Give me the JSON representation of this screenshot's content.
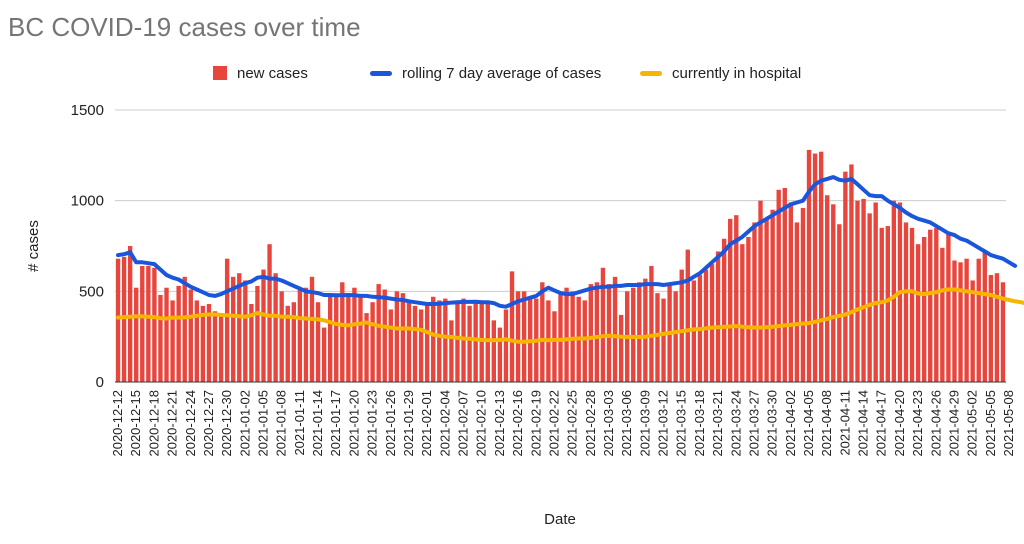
{
  "chart_data": {
    "type": "bar+line",
    "title": "BC COVID-19 cases over time",
    "xlabel": "Date",
    "ylabel": "# cases",
    "ylim": [
      0,
      1500
    ],
    "yticks": [
      0,
      500,
      1000,
      1500
    ],
    "grid": true,
    "legend_position": "top",
    "x_tick_labels": [
      "2020-12-12",
      "2020-12-15",
      "2020-12-18",
      "2020-12-21",
      "2020-12-24",
      "2020-12-27",
      "2020-12-30",
      "2021-01-02",
      "2021-01-05",
      "2021-01-08",
      "2021-01-11",
      "2021-01-14",
      "2021-01-17",
      "2021-01-20",
      "2021-01-23",
      "2021-01-26",
      "2021-01-29",
      "2021-02-01",
      "2021-02-04",
      "2021-02-07",
      "2021-02-10",
      "2021-02-13",
      "2021-02-16",
      "2021-02-19",
      "2021-02-22",
      "2021-02-25",
      "2021-02-28",
      "2021-03-03",
      "2021-03-06",
      "2021-03-09",
      "2021-03-12",
      "2021-03-15",
      "2021-03-18",
      "2021-03-21",
      "2021-03-24",
      "2021-03-27",
      "2021-03-30",
      "2021-04-02",
      "2021-04-05",
      "2021-04-08",
      "2021-04-11",
      "2021-04-14",
      "2021-04-17",
      "2021-04-20",
      "2021-04-23",
      "2021-04-26",
      "2021-04-29",
      "2021-05-02",
      "2021-05-05",
      "2021-05-08"
    ],
    "series": [
      {
        "name": "new cases",
        "kind": "bar",
        "color": "#e8453c",
        "values": [
          680,
          690,
          750,
          520,
          640,
          640,
          630,
          480,
          520,
          450,
          530,
          580,
          510,
          450,
          420,
          430,
          390,
          380,
          680,
          580,
          600,
          560,
          430,
          530,
          620,
          760,
          600,
          500,
          420,
          440,
          510,
          520,
          580,
          440,
          300,
          470,
          480,
          550,
          490,
          520,
          480,
          380,
          440,
          540,
          510,
          400,
          500,
          490,
          450,
          420,
          400,
          430,
          470,
          450,
          460,
          340,
          450,
          460,
          420,
          440,
          450,
          430,
          340,
          300,
          400,
          610,
          500,
          500,
          460,
          460,
          550,
          450,
          390,
          500,
          520,
          500,
          470,
          450,
          540,
          550,
          630,
          540,
          580,
          370,
          500,
          520,
          550,
          570,
          640,
          490,
          460,
          530,
          500,
          620,
          730,
          560,
          590,
          620,
          650,
          720,
          790,
          900,
          920,
          760,
          800,
          880,
          1000,
          900,
          950,
          1060,
          1070,
          990,
          880,
          960,
          1280,
          1260,
          1270,
          1030,
          980,
          870,
          1160,
          1200,
          1000,
          1010,
          930,
          990,
          850,
          860,
          1000,
          990,
          880,
          850,
          760,
          800,
          840,
          850,
          740,
          830,
          670,
          660,
          680,
          560,
          680,
          720,
          590,
          600,
          550
        ]
      },
      {
        "name": "rolling 7 day average of cases",
        "kind": "line",
        "color": "#1a56db",
        "values": [
          700,
          705,
          715,
          660,
          660,
          655,
          650,
          620,
          590,
          575,
          565,
          545,
          525,
          510,
          495,
          480,
          475,
          485,
          500,
          515,
          530,
          545,
          555,
          575,
          580,
          570,
          570,
          560,
          545,
          530,
          515,
          500,
          495,
          490,
          480,
          480,
          478,
          478,
          480,
          478,
          475,
          475,
          470,
          468,
          465,
          460,
          455,
          452,
          445,
          440,
          435,
          430,
          430,
          432,
          435,
          438,
          440,
          442,
          442,
          443,
          440,
          440,
          435,
          420,
          415,
          430,
          445,
          455,
          465,
          475,
          500,
          520,
          505,
          490,
          485,
          485,
          495,
          505,
          515,
          520,
          525,
          525,
          530,
          530,
          535,
          535,
          535,
          540,
          540,
          540,
          535,
          540,
          545,
          550,
          560,
          580,
          600,
          630,
          660,
          690,
          720,
          760,
          780,
          800,
          830,
          860,
          880,
          900,
          920,
          940,
          960,
          980,
          990,
          1000,
          1050,
          1090,
          1110,
          1120,
          1130,
          1115,
          1110,
          1120,
          1090,
          1060,
          1030,
          1025,
          1025,
          1000,
          980,
          960,
          935,
          915,
          900,
          890,
          880,
          860,
          840,
          820,
          810,
          790,
          780,
          760,
          740,
          720,
          700,
          690,
          680,
          660,
          640
        ]
      },
      {
        "name": "currently in hospital",
        "kind": "line",
        "color": "#f6b600",
        "values": [
          355,
          358,
          360,
          362,
          362,
          360,
          358,
          352,
          350,
          355,
          355,
          356,
          360,
          365,
          370,
          372,
          372,
          370,
          368,
          365,
          363,
          360,
          368,
          380,
          372,
          365,
          365,
          360,
          360,
          358,
          352,
          350,
          348,
          345,
          340,
          330,
          320,
          315,
          312,
          318,
          322,
          328,
          318,
          310,
          305,
          300,
          295,
          295,
          295,
          292,
          288,
          275,
          262,
          255,
          250,
          248,
          243,
          240,
          238,
          235,
          232,
          230,
          230,
          232,
          235,
          228,
          222,
          222,
          225,
          228,
          232,
          230,
          232,
          232,
          235,
          238,
          240,
          240,
          243,
          248,
          252,
          255,
          252,
          250,
          248,
          248,
          248,
          250,
          255,
          260,
          265,
          270,
          275,
          280,
          285,
          290,
          292,
          296,
          300,
          302,
          304,
          306,
          308,
          305,
          302,
          300,
          300,
          302,
          305,
          308,
          312,
          315,
          318,
          322,
          325,
          332,
          340,
          348,
          358,
          365,
          372,
          385,
          400,
          412,
          425,
          435,
          440,
          450,
          470,
          495,
          500,
          500,
          488,
          485,
          490,
          495,
          505,
          510,
          510,
          505,
          500,
          495,
          490,
          485,
          480,
          470,
          460,
          452,
          445,
          440,
          430,
          425,
          415
        ]
      }
    ]
  }
}
